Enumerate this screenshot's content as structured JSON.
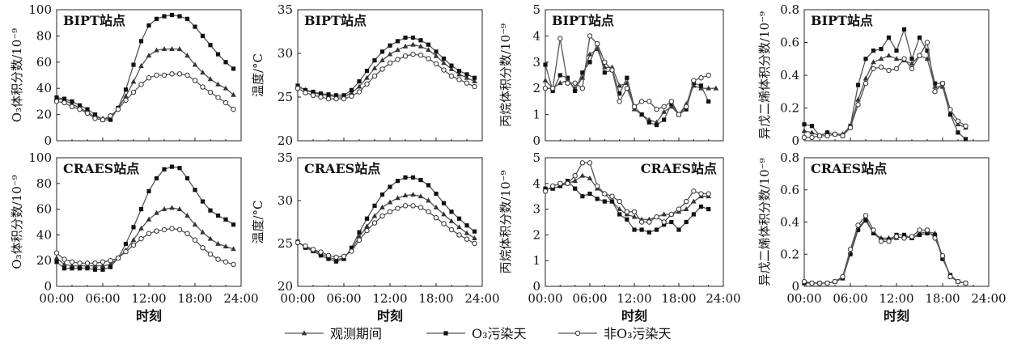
{
  "chart_data": [
    {
      "type": "line",
      "panel": "BIPT-O3",
      "title": "BIPT站点",
      "ylabel": "O₃体积分数/10⁻⁹",
      "xlabel": "",
      "ylim": [
        0,
        100
      ],
      "yticks": [
        "0",
        "20",
        "40",
        "60",
        "80",
        "100"
      ],
      "x": [
        0,
        1,
        2,
        3,
        4,
        5,
        6,
        7,
        8,
        9,
        10,
        11,
        12,
        13,
        14,
        15,
        16,
        17,
        18,
        19,
        20,
        21,
        22,
        23
      ],
      "series": [
        {
          "name": "观测期间",
          "values": [
            32,
            31,
            28,
            25,
            22,
            18,
            17,
            17,
            25,
            34,
            45,
            57,
            65,
            69,
            70,
            70,
            70,
            65,
            58,
            52,
            47,
            43,
            40,
            35
          ]
        },
        {
          "name": "O₃污染天",
          "values": [
            33,
            32,
            30,
            27,
            24,
            20,
            16,
            16,
            25,
            39,
            58,
            76,
            88,
            93,
            95,
            96,
            95,
            93,
            87,
            80,
            73,
            66,
            60,
            55
          ]
        },
        {
          "name": "非O₃污染天",
          "values": [
            30,
            29,
            26,
            24,
            21,
            17,
            16,
            19,
            24,
            31,
            37,
            43,
            48,
            50,
            50,
            51,
            51,
            50,
            46,
            41,
            37,
            33,
            29,
            24
          ]
        }
      ]
    },
    {
      "type": "line",
      "panel": "BIPT-T",
      "title": "BIPT站点",
      "ylabel": "温度/°C",
      "xlabel": "",
      "ylim": [
        20,
        35
      ],
      "yticks": [
        "20",
        "25",
        "30",
        "35"
      ],
      "x": [
        0,
        1,
        2,
        3,
        4,
        5,
        6,
        7,
        8,
        9,
        10,
        11,
        12,
        13,
        14,
        15,
        16,
        17,
        18,
        19,
        20,
        21,
        22,
        23
      ],
      "series": [
        {
          "name": "观测期间",
          "values": [
            26.2,
            25.8,
            25.5,
            25.3,
            25.2,
            25.0,
            25.0,
            25.5,
            26.2,
            27.2,
            28.3,
            29.2,
            29.9,
            30.4,
            30.8,
            31.0,
            30.8,
            30.4,
            29.7,
            28.9,
            28.2,
            27.6,
            27.2,
            26.8
          ]
        },
        {
          "name": "O₃污染天",
          "values": [
            26.3,
            25.8,
            25.6,
            25.4,
            25.3,
            25.2,
            25.2,
            25.8,
            26.8,
            28.0,
            29.2,
            30.2,
            30.9,
            31.4,
            31.8,
            31.8,
            31.5,
            31.0,
            30.2,
            29.4,
            28.6,
            28.0,
            27.6,
            27.2
          ]
        },
        {
          "name": "非O₃污染天",
          "values": [
            26.0,
            25.5,
            25.2,
            25.0,
            24.8,
            24.8,
            24.8,
            25.1,
            25.6,
            26.5,
            27.4,
            28.2,
            28.9,
            29.3,
            29.7,
            29.9,
            29.8,
            29.4,
            28.8,
            28.1,
            27.4,
            27.0,
            26.6,
            26.2
          ]
        }
      ]
    },
    {
      "type": "line",
      "panel": "BIPT-propane",
      "title": "BIPT站点",
      "ylabel": "丙烷体积分数/10⁻⁹",
      "xlabel": "",
      "ylim": [
        0,
        5
      ],
      "yticks": [
        "0",
        "1",
        "2",
        "3",
        "4",
        "5"
      ],
      "x": [
        0,
        1,
        2,
        3,
        4,
        5,
        6,
        7,
        8,
        9,
        10,
        11,
        12,
        13,
        14,
        15,
        16,
        17,
        18,
        19,
        20,
        21,
        22,
        23
      ],
      "series": [
        {
          "name": "观测期间",
          "values": [
            2.3,
            2.0,
            2.2,
            2.3,
            2.0,
            2.4,
            3.3,
            3.5,
            2.8,
            2.8,
            2.1,
            2.2,
            1.2,
            1.0,
            0.8,
            0.7,
            1.1,
            1.3,
            1.0,
            1.4,
            2.1,
            2.0,
            2.0,
            2.0
          ]
        },
        {
          "name": "O₃污染天",
          "values": [
            2.9,
            1.9,
            2.5,
            2.4,
            1.9,
            2.6,
            3.0,
            3.7,
            2.6,
            2.7,
            1.8,
            2.4,
            1.3,
            1.0,
            0.7,
            0.6,
            0.8,
            1.4,
            1.0,
            1.2,
            2.2,
            2.1,
            1.5,
            null
          ]
        },
        {
          "name": "非O₃污染天",
          "values": [
            2.0,
            2.0,
            3.9,
            2.2,
            2.2,
            2.0,
            4.0,
            3.7,
            3.0,
            2.7,
            1.5,
            2.0,
            1.3,
            1.5,
            1.5,
            1.2,
            1.3,
            1.5,
            1.0,
            1.3,
            2.3,
            2.4,
            2.5,
            null
          ]
        }
      ]
    },
    {
      "type": "line",
      "panel": "BIPT-isoprene",
      "title": "BIPT站点",
      "ylabel": "异戊二烯体积分数/10⁻⁹",
      "xlabel": "",
      "ylim": [
        0,
        0.8
      ],
      "yticks": [
        "0",
        "0.2",
        "0.4",
        "0.6",
        "0.8"
      ],
      "x": [
        0,
        1,
        2,
        3,
        4,
        5,
        6,
        7,
        8,
        9,
        10,
        11,
        12,
        13,
        14,
        15,
        16,
        17,
        18,
        19,
        20,
        21,
        22,
        23
      ],
      "series": [
        {
          "name": "观测期间",
          "values": [
            0.06,
            0.05,
            0.03,
            0.05,
            0.04,
            0.04,
            0.09,
            0.25,
            0.38,
            0.48,
            0.5,
            0.52,
            0.5,
            0.49,
            0.47,
            0.52,
            0.5,
            0.33,
            0.33,
            0.16,
            0.1,
            0.08,
            null,
            null
          ]
        },
        {
          "name": "O₃污染天",
          "values": [
            0.1,
            0.09,
            0.03,
            0.05,
            0.04,
            0.03,
            0.09,
            0.34,
            0.5,
            0.55,
            0.56,
            0.63,
            0.55,
            0.68,
            0.5,
            0.63,
            0.55,
            0.35,
            0.35,
            0.16,
            0.05,
            0.01,
            null,
            null
          ]
        },
        {
          "name": "非O₃污染天",
          "values": [
            0.02,
            0.02,
            0.03,
            0.03,
            0.04,
            0.03,
            0.08,
            0.22,
            0.35,
            0.44,
            0.45,
            0.43,
            0.44,
            0.5,
            0.44,
            0.52,
            0.6,
            0.3,
            0.35,
            0.19,
            0.12,
            0.09,
            null,
            null
          ]
        }
      ]
    },
    {
      "type": "line",
      "panel": "CRAES-O3",
      "title": "CRAES站点",
      "ylabel": "O₃体积分数/10⁻⁹",
      "xlabel": "时刻",
      "ylim": [
        0,
        100
      ],
      "yticks": [
        "0",
        "20",
        "40",
        "60",
        "80",
        "100"
      ],
      "xticks": [
        "00:00",
        "06:00",
        "12:00",
        "18:00",
        "24:00"
      ],
      "x": [
        0,
        1,
        2,
        3,
        4,
        5,
        6,
        7,
        8,
        9,
        10,
        11,
        12,
        13,
        14,
        15,
        16,
        17,
        18,
        19,
        20,
        21,
        22,
        23
      ],
      "series": [
        {
          "name": "观测期间",
          "values": [
            22,
            17,
            16,
            16,
            16,
            16,
            16,
            17,
            22,
            28,
            36,
            45,
            52,
            57,
            60,
            61,
            60,
            55,
            48,
            42,
            37,
            33,
            31,
            29
          ]
        },
        {
          "name": "O₃污染天",
          "values": [
            19,
            14,
            14,
            14,
            14,
            13,
            13,
            15,
            22,
            33,
            46,
            60,
            74,
            84,
            91,
            93,
            92,
            84,
            75,
            66,
            59,
            55,
            52,
            48
          ]
        },
        {
          "name": "非O₃污染天",
          "values": [
            26,
            21,
            19,
            18,
            18,
            18,
            19,
            20,
            22,
            27,
            32,
            37,
            41,
            43,
            44,
            45,
            44,
            41,
            36,
            30,
            25,
            21,
            19,
            17
          ]
        }
      ]
    },
    {
      "type": "line",
      "panel": "CRAES-T",
      "title": "CRAES站点",
      "ylabel": "温度/°C",
      "xlabel": "时刻",
      "ylim": [
        20,
        35
      ],
      "yticks": [
        "20",
        "25",
        "30",
        "35"
      ],
      "xticks": [
        "00:00",
        "06:00",
        "12:00",
        "18:00",
        "24:00"
      ],
      "x": [
        0,
        1,
        2,
        3,
        4,
        5,
        6,
        7,
        8,
        9,
        10,
        11,
        12,
        13,
        14,
        15,
        16,
        17,
        18,
        19,
        20,
        21,
        22,
        23
      ],
      "series": [
        {
          "name": "观测期间",
          "values": [
            25.2,
            24.6,
            24.2,
            23.8,
            23.4,
            23.1,
            23.3,
            24.3,
            25.8,
            27.0,
            28.2,
            29.2,
            29.8,
            30.3,
            30.6,
            30.7,
            30.5,
            30.0,
            29.2,
            28.4,
            27.6,
            26.9,
            26.2,
            25.6
          ]
        },
        {
          "name": "O₃污染天",
          "values": [
            25.2,
            24.5,
            24.1,
            23.6,
            23.2,
            22.9,
            23.2,
            24.5,
            26.3,
            27.9,
            29.4,
            30.7,
            31.6,
            32.3,
            32.7,
            32.7,
            32.4,
            31.8,
            30.8,
            29.7,
            28.7,
            27.9,
            27.1,
            26.4
          ]
        },
        {
          "name": "非O₃污染天",
          "values": [
            25.1,
            24.7,
            24.3,
            24.0,
            23.6,
            23.4,
            23.5,
            24.1,
            25.4,
            26.5,
            27.4,
            28.2,
            28.7,
            29.1,
            29.4,
            29.4,
            29.2,
            28.7,
            28.0,
            27.3,
            26.6,
            26.0,
            25.5,
            25.0
          ]
        }
      ]
    },
    {
      "type": "line",
      "panel": "CRAES-propane",
      "title": "CRAES站点",
      "ylabel": "丙烷体积分数/10⁻⁹",
      "xlabel": "时刻",
      "ylim": [
        0,
        5
      ],
      "yticks": [
        "0",
        "1",
        "2",
        "3",
        "4",
        "5"
      ],
      "xticks": [
        "00:00",
        "06:00",
        "12:00",
        "18:00",
        "24:00"
      ],
      "x": [
        0,
        1,
        2,
        3,
        4,
        5,
        6,
        7,
        8,
        9,
        10,
        11,
        12,
        13,
        14,
        15,
        16,
        17,
        18,
        19,
        20,
        21,
        22,
        23
      ],
      "series": [
        {
          "name": "观测期间",
          "values": [
            3.8,
            3.8,
            3.9,
            4.0,
            4.1,
            4.3,
            4.2,
            3.8,
            3.6,
            3.3,
            3.0,
            2.8,
            2.7,
            2.6,
            2.6,
            2.7,
            2.8,
            2.8,
            2.9,
            3.0,
            3.3,
            3.5,
            3.5,
            null
          ]
        },
        {
          "name": "O₃污染天",
          "values": [
            3.8,
            3.8,
            3.9,
            4.1,
            3.8,
            3.5,
            3.6,
            3.4,
            3.3,
            3.3,
            2.8,
            2.6,
            2.2,
            2.2,
            2.1,
            2.2,
            2.4,
            2.5,
            2.2,
            2.5,
            2.8,
            3.1,
            3.0,
            null
          ]
        },
        {
          "name": "非O₃污染天",
          "values": [
            3.7,
            3.9,
            4.0,
            4.0,
            4.3,
            4.8,
            4.8,
            3.9,
            3.6,
            3.5,
            3.3,
            2.9,
            2.9,
            2.5,
            2.5,
            2.7,
            2.5,
            2.8,
            3.0,
            3.3,
            3.7,
            3.6,
            3.6,
            null
          ]
        }
      ]
    },
    {
      "type": "line",
      "panel": "CRAES-isoprene",
      "title": "CRAES站点",
      "ylabel": "异戊二烯体积分数/10⁻⁹",
      "xlabel": "时刻",
      "ylim": [
        0,
        0.8
      ],
      "yticks": [
        "0",
        "0.2",
        "0.4",
        "0.6",
        "0.8"
      ],
      "xticks": [
        "00:00",
        "06:00",
        "12:00",
        "18:00",
        "24:00"
      ],
      "x": [
        0,
        1,
        2,
        3,
        4,
        5,
        6,
        7,
        8,
        9,
        10,
        11,
        12,
        13,
        14,
        15,
        16,
        17,
        18,
        19,
        20,
        21,
        22,
        23
      ],
      "series": [
        {
          "name": "观测期间",
          "values": [
            0.02,
            0.02,
            0.02,
            0.02,
            0.03,
            0.05,
            0.21,
            0.36,
            0.42,
            0.33,
            0.3,
            0.3,
            0.3,
            0.31,
            0.3,
            0.33,
            0.34,
            0.33,
            0.18,
            0.06,
            0.03,
            0.02,
            null,
            null
          ]
        },
        {
          "name": "O₃污染天",
          "values": [
            0.02,
            0.02,
            0.02,
            0.02,
            0.03,
            0.05,
            0.2,
            0.35,
            0.41,
            0.33,
            0.29,
            0.29,
            0.32,
            0.32,
            0.3,
            0.32,
            0.33,
            0.32,
            0.17,
            0.07,
            0.03,
            0.02,
            null,
            null
          ]
        },
        {
          "name": "非O₃污染天",
          "values": [
            0.03,
            0.02,
            0.02,
            0.02,
            0.03,
            0.06,
            0.23,
            0.38,
            0.44,
            0.35,
            0.28,
            0.28,
            0.31,
            0.3,
            0.31,
            0.35,
            0.35,
            0.3,
            0.19,
            0.06,
            0.03,
            0.02,
            null,
            null
          ]
        }
      ]
    }
  ],
  "legend": {
    "items": [
      {
        "label": "观测期间",
        "marker": "triangle"
      },
      {
        "label": "O₃污染天",
        "marker": "square"
      },
      {
        "label": "非O₃污染天",
        "marker": "circle"
      }
    ]
  },
  "colors": {
    "line": "#555555",
    "marker_dark": "#333333",
    "marker_open": "#ffffff"
  }
}
